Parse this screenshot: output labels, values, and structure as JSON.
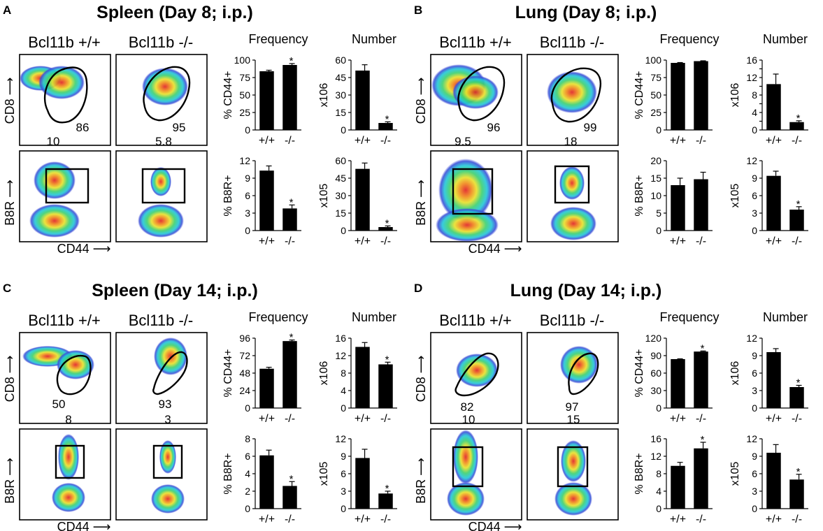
{
  "colors": {
    "dots_low": "#3b4fd8",
    "dots_mid": "#22c7d8",
    "dots_high": "#e8e02a",
    "dots_peak": "#e02020",
    "bars": "#000000"
  },
  "panels": [
    {
      "letter": "A",
      "title": "Spleen (Day 8; i.p.)",
      "col1": "Bcl11b +/+",
      "col2": "Bcl11b -/-",
      "freq_header": "Frequency",
      "num_header": "Number",
      "row1_ylabel": "CD8 ⟶",
      "row2_ylabel": "B8R ⟶",
      "xlabel": "CD44 ⟶",
      "gate_values": [
        "86",
        "95",
        "10",
        "5.8"
      ]
    },
    {
      "letter": "B",
      "title": "Lung (Day 8; i.p.)",
      "col1": "Bcl11b +/+",
      "col2": "Bcl11b -/-",
      "freq_header": "Frequency",
      "num_header": "Number",
      "row1_ylabel": "CD8 ⟶",
      "row2_ylabel": "B8R ⟶",
      "xlabel": "CD44 ⟶",
      "gate_values": [
        "96",
        "99",
        "9.5",
        "18"
      ]
    },
    {
      "letter": "C",
      "title": "Spleen (Day 14; i.p.)",
      "col1": "Bcl11b +/+",
      "col2": "Bcl11b -/-",
      "freq_header": "Frequency",
      "num_header": "Number",
      "row1_ylabel": "CD8 ⟶",
      "row2_ylabel": "B8R ⟶",
      "xlabel": "CD44 ⟶",
      "gate_values": [
        "50",
        "93",
        "8",
        "3"
      ]
    },
    {
      "letter": "D",
      "title": "Lung (Day 14; i.p.)",
      "col1": "Bcl11b +/+",
      "col2": "Bcl11b -/-",
      "freq_header": "Frequency",
      "num_header": "Number",
      "row1_ylabel": "CD8 ⟶",
      "row2_ylabel": "B8R ⟶",
      "xlabel": "CD44 ⟶",
      "gate_values": [
        "82",
        "97",
        "10",
        "15"
      ]
    }
  ],
  "chart_data": [
    {
      "panel": "A",
      "id": "A-freq-cd44",
      "type": "bar",
      "categories": [
        "+/+",
        "-/-"
      ],
      "values": [
        84,
        93
      ],
      "errors": [
        1.5,
        2
      ],
      "ylabel": "% CD44+",
      "ylim": [
        0,
        100
      ],
      "yticks": [
        "0",
        "25",
        "50",
        "75",
        "100"
      ],
      "significance": [
        false,
        true
      ],
      "sig_label": "*"
    },
    {
      "panel": "A",
      "id": "A-num-cd8",
      "type": "bar",
      "categories": [
        "+/+",
        "-/-"
      ],
      "values": [
        51,
        6
      ],
      "errors": [
        5,
        1
      ],
      "ylabel": "x106",
      "ylim": [
        0,
        60
      ],
      "yticks": [
        "0",
        "15",
        "30",
        "45",
        "60"
      ],
      "significance": [
        false,
        true
      ],
      "sig_label": "*"
    },
    {
      "panel": "A",
      "id": "A-freq-b8r",
      "type": "bar",
      "categories": [
        "+/+",
        "-/-"
      ],
      "values": [
        10.3,
        3.8
      ],
      "errors": [
        0.8,
        0.6
      ],
      "ylabel": "% B8R+",
      "ylim": [
        0,
        12
      ],
      "yticks": [
        "0",
        "3",
        "6",
        "9",
        "12"
      ],
      "significance": [
        false,
        true
      ],
      "sig_label": "*"
    },
    {
      "panel": "A",
      "id": "A-num-b8r",
      "type": "bar",
      "categories": [
        "+/+",
        "-/-"
      ],
      "values": [
        53,
        3
      ],
      "errors": [
        5,
        1
      ],
      "ylabel": "x105",
      "ylim": [
        0,
        60
      ],
      "yticks": [
        "0",
        "15",
        "30",
        "45",
        "60"
      ],
      "significance": [
        false,
        true
      ],
      "sig_label": "*"
    },
    {
      "panel": "B",
      "id": "B-freq-cd44",
      "type": "bar",
      "categories": [
        "+/+",
        "-/-"
      ],
      "values": [
        96,
        98.5
      ],
      "errors": [
        0.5,
        0.5
      ],
      "ylabel": "% CD44+",
      "ylim": [
        0,
        100
      ],
      "yticks": [
        "0",
        "25",
        "50",
        "75",
        "100"
      ],
      "significance": [
        false,
        false
      ],
      "sig_label": "*"
    },
    {
      "panel": "B",
      "id": "B-num-cd8",
      "type": "bar",
      "categories": [
        "+/+",
        "-/-"
      ],
      "values": [
        10.5,
        1.8
      ],
      "errors": [
        2.3,
        0.3
      ],
      "ylabel": "x106",
      "ylim": [
        0,
        16
      ],
      "yticks": [
        "0",
        "2",
        "4",
        "6",
        "8",
        "10",
        "12",
        "14",
        "16"
      ],
      "ytick_show": [
        "0",
        "4",
        "8",
        "12",
        "16"
      ],
      "significance": [
        false,
        true
      ],
      "sig_label": "*"
    },
    {
      "panel": "B",
      "id": "B-freq-b8r",
      "type": "bar",
      "categories": [
        "+/+",
        "-/-"
      ],
      "values": [
        13,
        14.7
      ],
      "errors": [
        2,
        2
      ],
      "ylabel": "% B8R+",
      "ylim": [
        0,
        20
      ],
      "yticks": [
        "0",
        "5",
        "10",
        "15",
        "20"
      ],
      "significance": [
        false,
        false
      ],
      "sig_label": "*"
    },
    {
      "panel": "B",
      "id": "B-num-b8r",
      "type": "bar",
      "categories": [
        "+/+",
        "-/-"
      ],
      "values": [
        9.4,
        3.6
      ],
      "errors": [
        0.8,
        0.5
      ],
      "ylabel": "x105",
      "ylim": [
        0,
        12
      ],
      "yticks": [
        "0",
        "3",
        "6",
        "9",
        "12"
      ],
      "significance": [
        false,
        true
      ],
      "sig_label": "*"
    },
    {
      "panel": "C",
      "id": "C-freq-cd44",
      "type": "bar",
      "categories": [
        "+/+",
        "-/-"
      ],
      "values": [
        54,
        92
      ],
      "errors": [
        2,
        1.5
      ],
      "ylabel": "% CD44+",
      "ylim": [
        0,
        96
      ],
      "yticks": [
        "0",
        "24",
        "48",
        "72",
        "96"
      ],
      "significance": [
        false,
        true
      ],
      "sig_label": "*"
    },
    {
      "panel": "C",
      "id": "C-num-cd8",
      "type": "bar",
      "categories": [
        "+/+",
        "-/-"
      ],
      "values": [
        14,
        10
      ],
      "errors": [
        1,
        0.5
      ],
      "ylabel": "x106",
      "ylim": [
        0,
        16
      ],
      "yticks": [
        "0",
        "4",
        "8",
        "12",
        "16"
      ],
      "significance": [
        false,
        true
      ],
      "sig_label": "*"
    },
    {
      "panel": "C",
      "id": "C-freq-b8r",
      "type": "bar",
      "categories": [
        "+/+",
        "-/-"
      ],
      "values": [
        6.1,
        2.6
      ],
      "errors": [
        0.6,
        0.5
      ],
      "ylabel": "% B8R+",
      "ylim": [
        0,
        8
      ],
      "yticks": [
        "0",
        "2",
        "4",
        "6",
        "8"
      ],
      "significance": [
        false,
        true
      ],
      "sig_label": "*"
    },
    {
      "panel": "C",
      "id": "C-num-b8r",
      "type": "bar",
      "categories": [
        "+/+",
        "-/-"
      ],
      "values": [
        8.7,
        2.6
      ],
      "errors": [
        1.5,
        0.4
      ],
      "ylabel": "x105",
      "ylim": [
        0,
        12
      ],
      "yticks": [
        "0",
        "3",
        "6",
        "9",
        "12"
      ],
      "significance": [
        false,
        true
      ],
      "sig_label": "*"
    },
    {
      "panel": "D",
      "id": "D-freq-cd44",
      "type": "bar",
      "categories": [
        "+/+",
        "-/-"
      ],
      "values": [
        84,
        97
      ],
      "errors": [
        0.5,
        1
      ],
      "ylabel": "% CD44+",
      "ylim": [
        0,
        120
      ],
      "yticks": [
        "0",
        "30",
        "60",
        "90",
        "120"
      ],
      "significance": [
        false,
        true
      ],
      "sig_label": "*"
    },
    {
      "panel": "D",
      "id": "D-num-cd8",
      "type": "bar",
      "categories": [
        "+/+",
        "-/-"
      ],
      "values": [
        9.6,
        3.6
      ],
      "errors": [
        0.6,
        0.3
      ],
      "ylabel": "x106",
      "ylim": [
        0,
        12
      ],
      "yticks": [
        "0",
        "3",
        "6",
        "9",
        "12"
      ],
      "significance": [
        false,
        true
      ],
      "sig_label": "*"
    },
    {
      "panel": "D",
      "id": "D-freq-b8r",
      "type": "bar",
      "categories": [
        "+/+",
        "-/-"
      ],
      "values": [
        9.8,
        13.8
      ],
      "errors": [
        0.8,
        1.4
      ],
      "ylabel": "% B8R+",
      "ylim": [
        0,
        16
      ],
      "yticks": [
        "0",
        "4",
        "8",
        "12",
        "16"
      ],
      "significance": [
        false,
        true
      ],
      "sig_label": "*"
    },
    {
      "panel": "D",
      "id": "D-num-b8r",
      "type": "bar",
      "categories": [
        "+/+",
        "-/-"
      ],
      "values": [
        9.6,
        5
      ],
      "errors": [
        1.4,
        0.9
      ],
      "ylabel": "x105",
      "ylim": [
        0,
        12
      ],
      "yticks": [
        "0",
        "3",
        "6",
        "9",
        "12"
      ],
      "significance": [
        false,
        true
      ],
      "sig_label": "*"
    }
  ]
}
